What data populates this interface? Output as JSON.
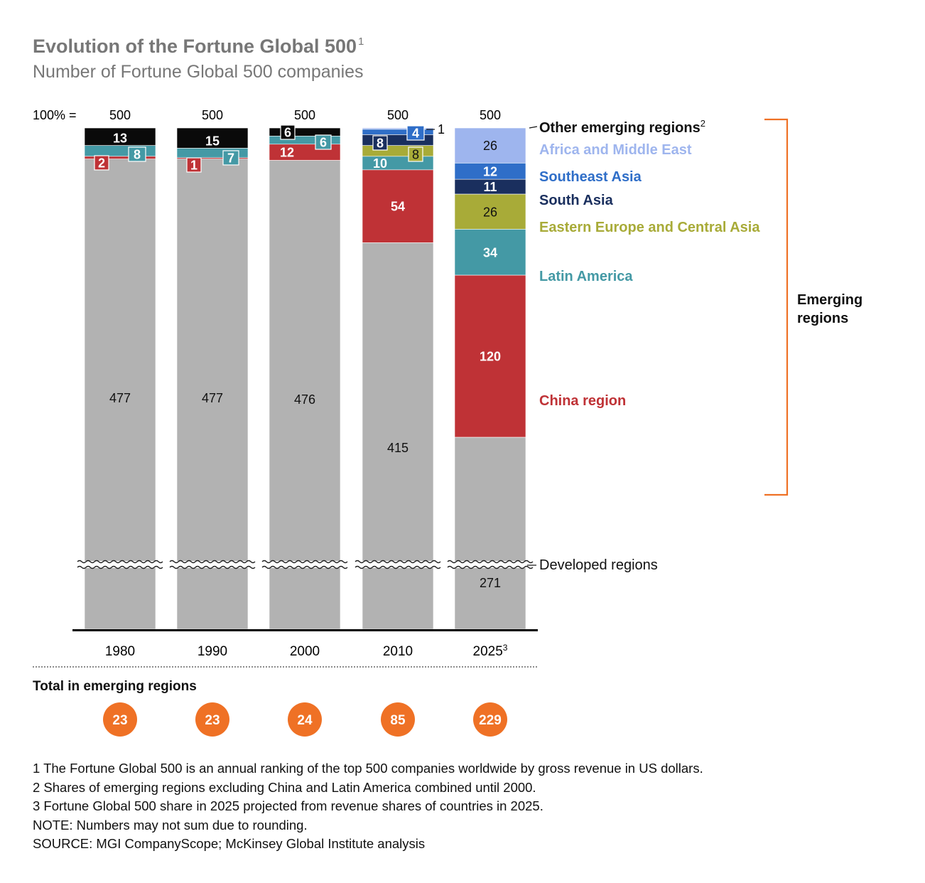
{
  "header": {
    "title": "Evolution of the Fortune Global 500",
    "title_sup": "1",
    "subtitle": "Number of Fortune Global 500 companies"
  },
  "chart_data": {
    "type": "bar",
    "stacked": true,
    "total_prefix": "100% =",
    "categories": [
      "1980",
      "1990",
      "2000",
      "2010",
      "2025"
    ],
    "category_sups": [
      "",
      "",
      "",
      "",
      "3"
    ],
    "totals": [
      500,
      500,
      500,
      500,
      500
    ],
    "series": [
      {
        "name": "Developed regions",
        "color": "#b2b2b2",
        "label_color": "#111111",
        "values": [
          477,
          477,
          476,
          415,
          271
        ],
        "labels": [
          "477",
          "477",
          "476",
          "415",
          "271"
        ]
      },
      {
        "name": "China region",
        "color": "#bf3236",
        "label_color": "#ffffff",
        "values": [
          2,
          1,
          12,
          54,
          120
        ],
        "labels": [
          "2",
          "1",
          "12",
          "54",
          "120"
        ]
      },
      {
        "name": "Latin America",
        "color": "#4499a5",
        "label_color": "#ffffff",
        "values": [
          8,
          7,
          6,
          10,
          34
        ],
        "labels": [
          "8",
          "7",
          "6",
          "10",
          "34"
        ]
      },
      {
        "name": "Eastern Europe and Central Asia",
        "color": "#a8ab38",
        "label_color": "#111111",
        "values": [
          null,
          null,
          null,
          8,
          26
        ],
        "labels": [
          "",
          "",
          "",
          "8",
          "26"
        ]
      },
      {
        "name": "South Asia",
        "color": "#1a2f5e",
        "label_color": "#ffffff",
        "values": [
          null,
          null,
          null,
          8,
          11
        ],
        "labels": [
          "",
          "",
          "",
          "8",
          "11"
        ]
      },
      {
        "name": "Southeast Asia",
        "color": "#2f6ec8",
        "label_color": "#ffffff",
        "values": [
          null,
          null,
          null,
          4,
          12
        ],
        "labels": [
          "",
          "",
          "",
          "4",
          "12"
        ]
      },
      {
        "name": "Africa and Middle East",
        "color": "#9eb5ee",
        "label_color": "#111111",
        "values": [
          null,
          null,
          null,
          1,
          26
        ],
        "labels": [
          "",
          "",
          "",
          "1",
          "26"
        ]
      },
      {
        "name": "Other emerging regions",
        "name_sup": "2",
        "color": "#0a0a0a",
        "label_color": "#ffffff",
        "values": [
          13,
          15,
          6,
          null,
          null
        ],
        "labels": [
          "13",
          "15",
          "6",
          "",
          ""
        ]
      }
    ],
    "bracket_label": [
      "Emerging",
      "regions"
    ],
    "emerging_total_title": "Total in emerging regions",
    "emerging_totals": [
      23,
      23,
      24,
      85,
      229
    ],
    "axis_break": true,
    "accent_color": "#ef7125"
  },
  "footnotes": [
    "1  The Fortune Global 500 is an annual ranking of the top 500 companies worldwide by gross revenue in US dollars.",
    "2  Shares of emerging regions excluding China and Latin America combined until 2000.",
    "3  Fortune Global 500 share in 2025 projected from revenue shares of countries in 2025.",
    "NOTE: Numbers may not sum due to rounding.",
    "SOURCE: MGI CompanyScope; McKinsey Global Institute analysis"
  ]
}
